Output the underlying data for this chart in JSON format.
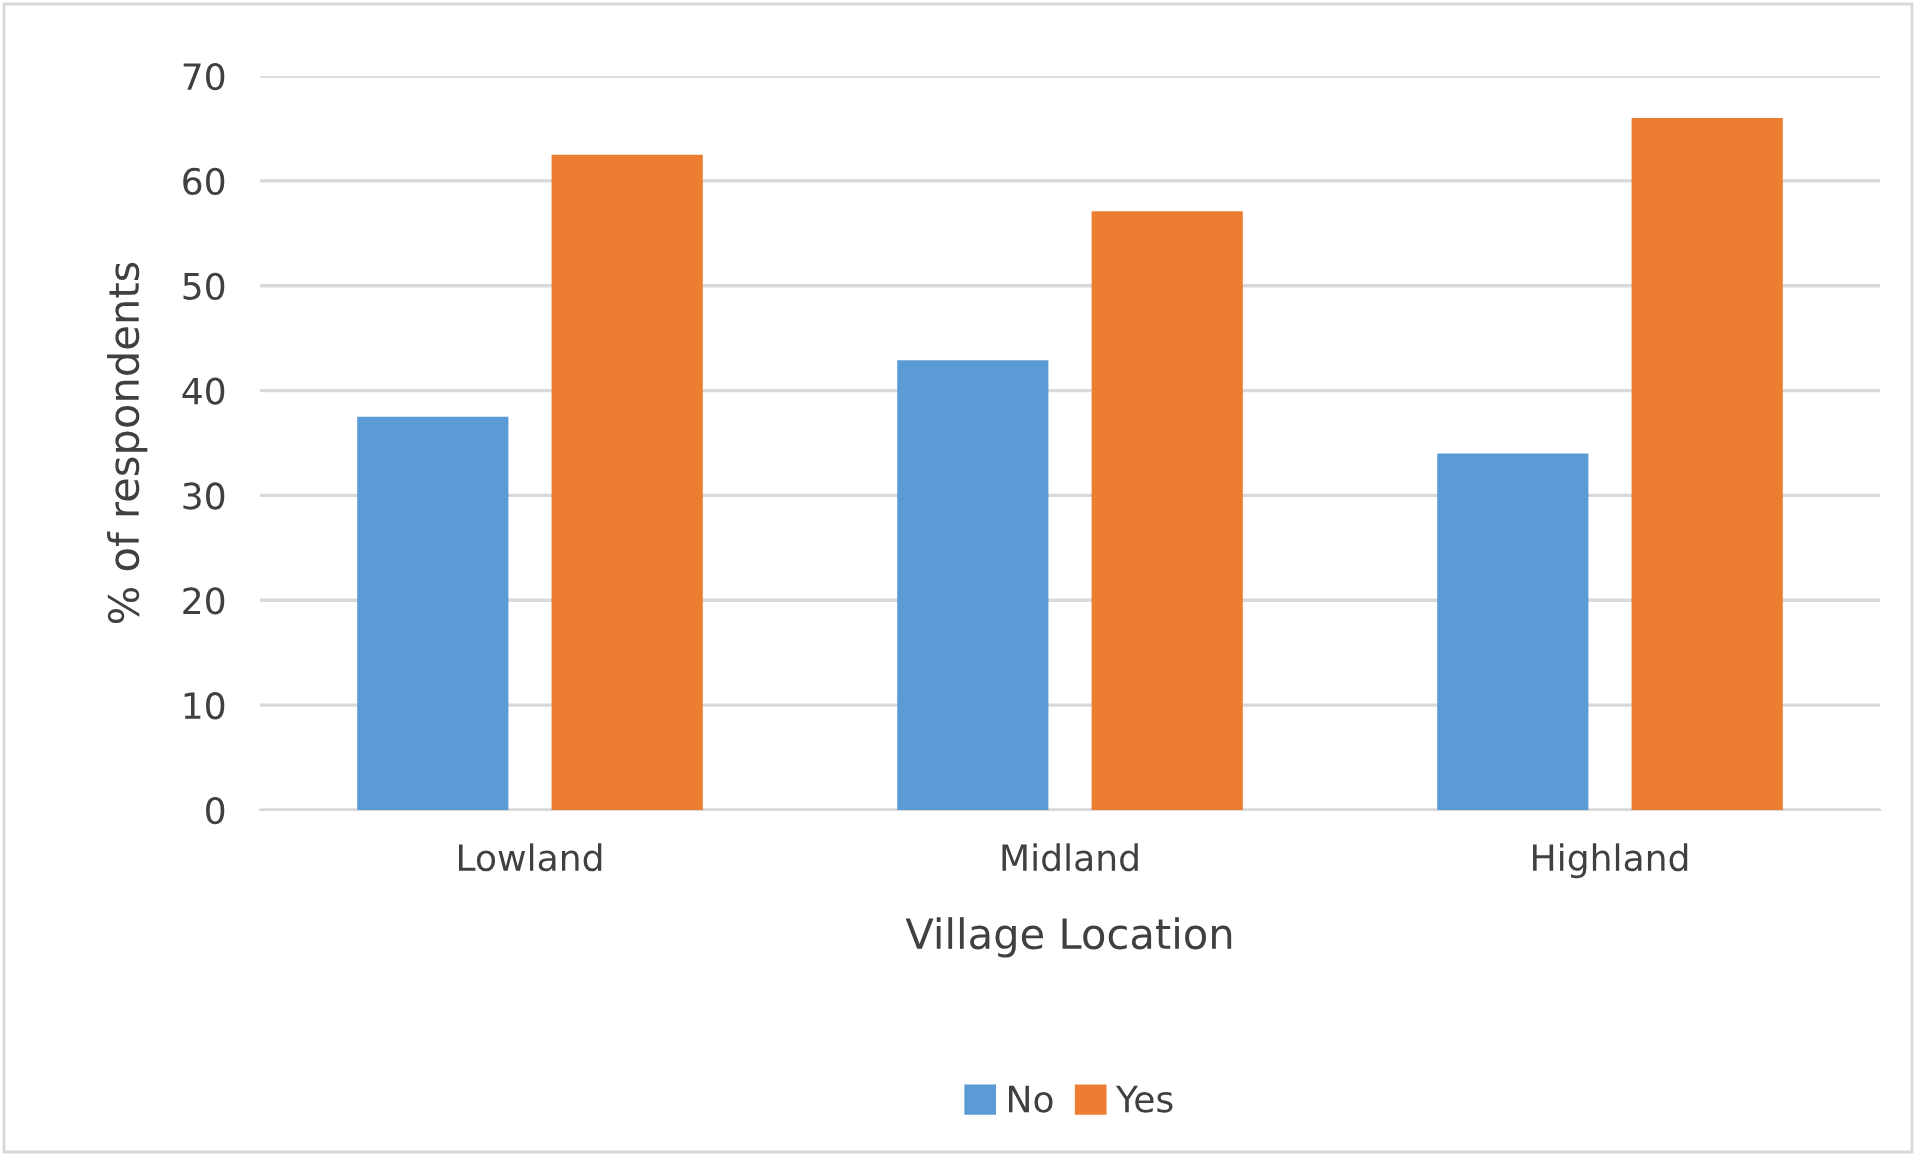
{
  "chart_data": {
    "type": "bar",
    "xlabel": "Village Location",
    "ylabel": "% of respondents",
    "categories": [
      "Lowland",
      "Midland",
      "Highland"
    ],
    "series": [
      {
        "name": "No",
        "color": "#5b9bd5",
        "values": [
          37.5,
          42.9,
          34.0
        ]
      },
      {
        "name": "Yes",
        "color": "#ed7d31",
        "values": [
          62.5,
          57.1,
          66.0
        ]
      }
    ],
    "ylim": [
      0,
      70
    ],
    "yticks": [
      0,
      10,
      20,
      30,
      40,
      50,
      60,
      70
    ],
    "grid": "y",
    "legend": "bottom"
  }
}
